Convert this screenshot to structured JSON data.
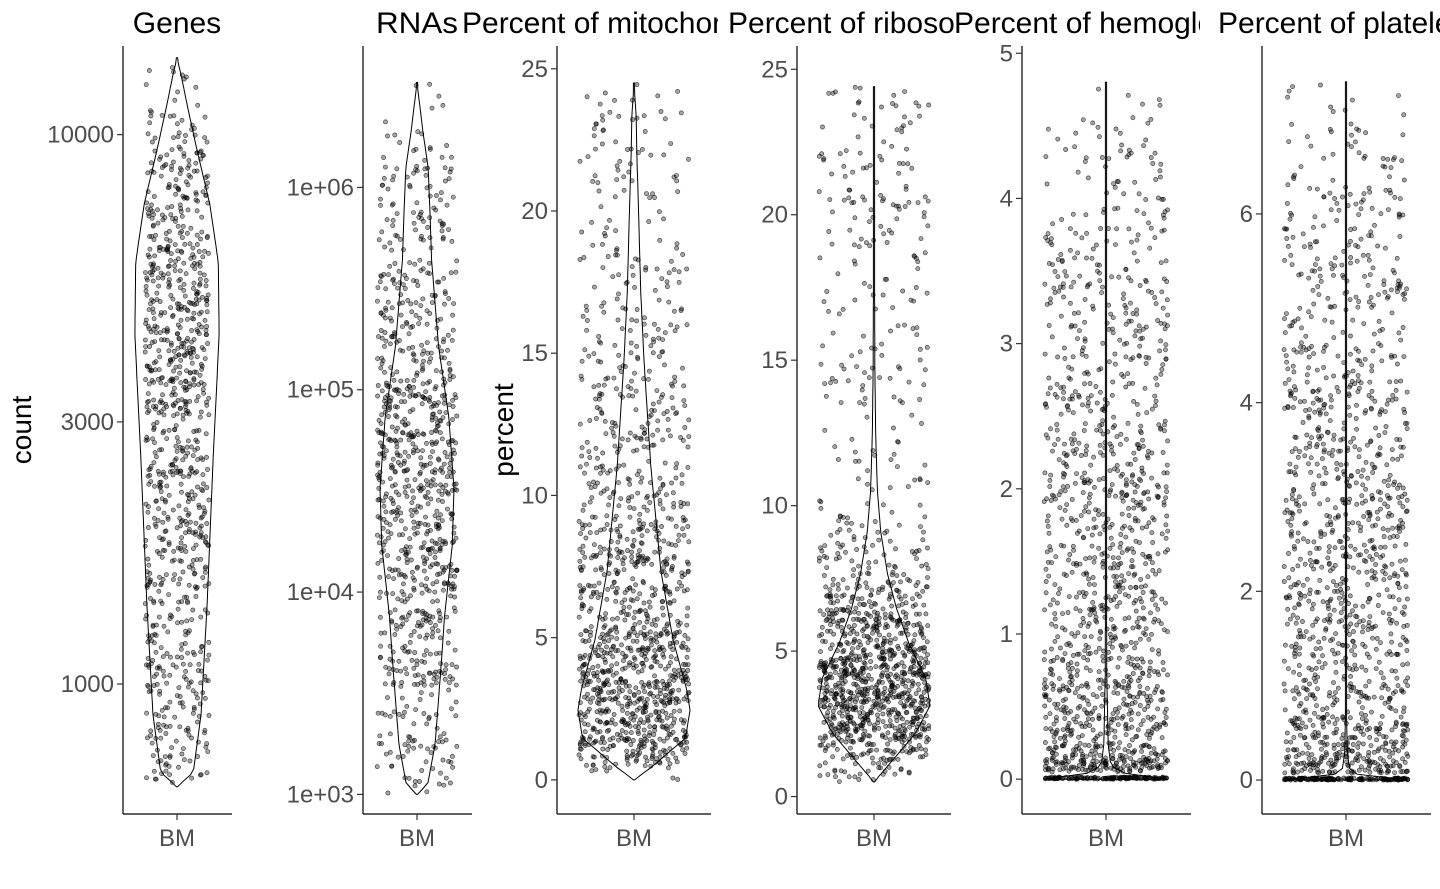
{
  "chart_data": [
    {
      "type": "violin",
      "title": "Genes",
      "ylabel": "count",
      "scale": "log",
      "categories": [
        "BM"
      ],
      "ylim": [
        580,
        14500
      ],
      "yticks": [
        1000,
        3000,
        10000
      ],
      "ytick_labels": [
        "1000",
        "3000",
        "10000"
      ],
      "distribution": {
        "min": 650,
        "max": 13800,
        "mode": 5500
      },
      "n_points": 900
    },
    {
      "type": "violin",
      "title": "RNAs",
      "ylabel": "",
      "scale": "log",
      "categories": [
        "BM"
      ],
      "ylim": [
        800,
        5000000
      ],
      "yticks": [
        1000,
        10000,
        100000,
        1000000
      ],
      "ytick_labels": [
        "1e+03",
        "1e+04",
        "1e+05",
        "1e+06"
      ],
      "distribution": {
        "min": 1000,
        "max": 3300000,
        "mode": 7000
      },
      "n_points": 900
    },
    {
      "type": "violin",
      "title": "Percent of mitochondrial genes",
      "ylabel": "percent",
      "scale": "linear",
      "categories": [
        "BM"
      ],
      "ylim": [
        -1.2,
        25.8
      ],
      "yticks": [
        0,
        5,
        10,
        15,
        20,
        25
      ],
      "ytick_labels": [
        "0",
        "5",
        "10",
        "15",
        "20",
        "25"
      ],
      "distribution": {
        "min": 0,
        "max": 24.5,
        "mode": 2.8
      },
      "n_points": 1200
    },
    {
      "type": "violin",
      "title": "Percent of ribosomal genes",
      "ylabel": "",
      "scale": "linear",
      "categories": [
        "BM"
      ],
      "ylim": [
        -0.6,
        25.8
      ],
      "yticks": [
        0,
        5,
        10,
        15,
        20,
        25
      ],
      "ytick_labels": [
        "0",
        "5",
        "10",
        "15",
        "20",
        "25"
      ],
      "distribution": {
        "min": 0.5,
        "max": 24.4,
        "mode": 3.0
      },
      "n_points": 1200
    },
    {
      "type": "violin",
      "title": "Percent of hemoglobin genes",
      "ylabel": "",
      "scale": "linear",
      "categories": [
        "BM"
      ],
      "ylim": [
        -0.24,
        5.05
      ],
      "yticks": [
        0,
        1,
        2,
        3,
        4,
        5
      ],
      "ytick_labels": [
        "0",
        "1",
        "2",
        "3",
        "4",
        "5"
      ],
      "distribution": {
        "min": 0,
        "max": 4.8,
        "mode": 0
      },
      "n_points": 1400
    },
    {
      "type": "violin",
      "title": "Percent of platelet genes",
      "ylabel": "",
      "scale": "linear",
      "categories": [
        "BM"
      ],
      "ylim": [
        -0.36,
        7.78
      ],
      "yticks": [
        0,
        2,
        4,
        6
      ],
      "ytick_labels": [
        "0",
        "2",
        "4",
        "6"
      ],
      "distribution": {
        "min": 0,
        "max": 7.4,
        "mode": 0
      },
      "n_points": 1400
    }
  ]
}
